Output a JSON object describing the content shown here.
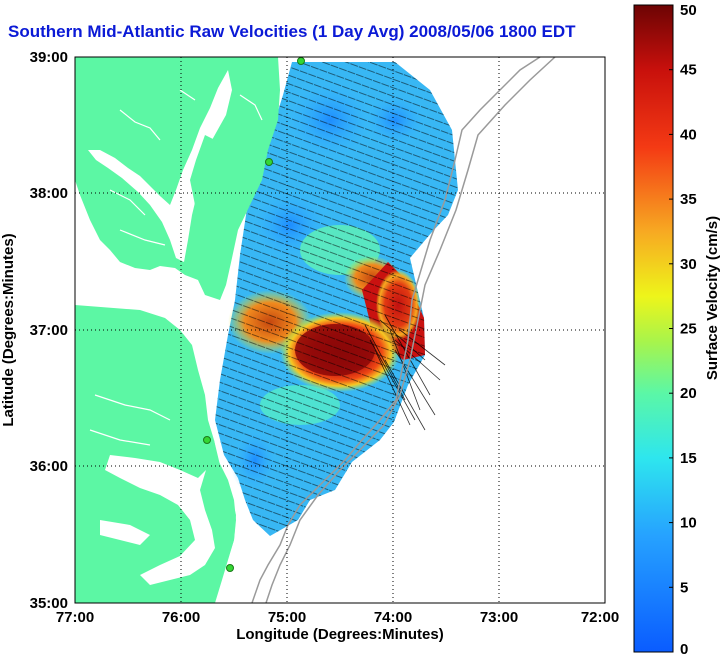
{
  "title": "Southern Mid-Atlantic Raw Velocities (1 Day Avg) 2008/05/06 1800 EDT",
  "xlabel": "Longitude (Degrees:Minutes)",
  "ylabel": "Latitude (Degrees:Minutes)",
  "x_ticks": [
    "77:00",
    "76:00",
    "75:00",
    "74:00",
    "73:00",
    "72:00"
  ],
  "y_ticks": [
    "39:00",
    "38:00",
    "37:00",
    "36:00",
    "35:00"
  ],
  "colorbar": {
    "label": "Surface Velocity (cm/s)",
    "min": 0,
    "max": 50,
    "ticks": [
      "0",
      "5",
      "10",
      "15",
      "20",
      "25",
      "30",
      "35",
      "40",
      "45",
      "50"
    ]
  },
  "colors": {
    "land": "#5cf7a4",
    "title": "#0b1ad6",
    "station": "#34d634",
    "isobath": "#9a9a9a"
  },
  "map_extent": {
    "lon": [
      -77,
      -72
    ],
    "lat": [
      35,
      39
    ]
  }
}
